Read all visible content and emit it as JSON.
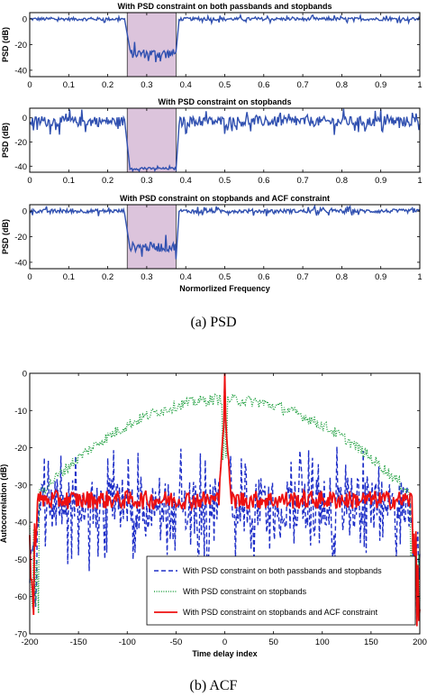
{
  "captions": {
    "top": "(a) PSD",
    "bottom": "(b) ACF"
  },
  "chart_data": [
    {
      "type": "line",
      "title": "With PSD constraint on both passbands and stopbands",
      "xlabel": "",
      "ylabel": "PSD (dB)",
      "xlim": [
        0,
        1
      ],
      "ylim": [
        -45,
        5
      ],
      "xticks": [
        "0",
        "0.1",
        "0.2",
        "0.3",
        "0.4",
        "0.5",
        "0.6",
        "0.7",
        "0.8",
        "0.9",
        "1"
      ],
      "yticks": [
        "0",
        "-20",
        "-40"
      ],
      "shaded_band": {
        "x": [
          0.25,
          0.375
        ],
        "color": "#dcc4dc"
      },
      "series": [
        {
          "color": "#3050b0",
          "regions": [
            {
              "x": [
                0,
                0.243
              ],
              "level": 0,
              "noise": 2
            },
            {
              "x": [
                0.257,
                0.375
              ],
              "level": -27,
              "noise": 6
            },
            {
              "x": [
                0.383,
                1
              ],
              "level": 0,
              "noise": 2
            }
          ]
        }
      ]
    },
    {
      "type": "line",
      "title": "With PSD constraint on stopbands",
      "xlabel": "",
      "ylabel": "PSD (dB)",
      "xlim": [
        0,
        1
      ],
      "ylim": [
        -45,
        8
      ],
      "xticks": [
        "0",
        "0.1",
        "0.2",
        "0.3",
        "0.4",
        "0.5",
        "0.6",
        "0.7",
        "0.8",
        "0.9",
        "1"
      ],
      "yticks": [
        "0",
        "-20",
        "-40"
      ],
      "shaded_band": {
        "x": [
          0.25,
          0.375
        ],
        "color": "#dcc4dc"
      },
      "series": [
        {
          "color": "#3050b0",
          "regions": [
            {
              "x": [
                0,
                0.243
              ],
              "level": -3,
              "noise": 7
            },
            {
              "x": [
                0.257,
                0.375
              ],
              "level": -42,
              "noise": 1.5
            },
            {
              "x": [
                0.383,
                1
              ],
              "level": -3,
              "noise": 7
            }
          ]
        }
      ]
    },
    {
      "type": "line",
      "title": "With PSD constraint on stopbands and ACF constraint",
      "xlabel": "Normorlized Frequency",
      "ylabel": "PSD (dB)",
      "xlim": [
        0,
        1
      ],
      "ylim": [
        -45,
        5
      ],
      "xticks": [
        "0",
        "0.1",
        "0.2",
        "0.3",
        "0.4",
        "0.5",
        "0.6",
        "0.7",
        "0.8",
        "0.9",
        "1"
      ],
      "yticks": [
        "0",
        "-20",
        "-40"
      ],
      "shaded_band": {
        "x": [
          0.25,
          0.375
        ],
        "color": "#dcc4dc"
      },
      "series": [
        {
          "color": "#3050b0",
          "regions": [
            {
              "x": [
                0,
                0.243
              ],
              "level": 0,
              "noise": 2.5
            },
            {
              "x": [
                0.257,
                0.375
              ],
              "level": -28,
              "noise": 6
            },
            {
              "x": [
                0.383,
                1
              ],
              "level": 0,
              "noise": 2.5
            }
          ]
        }
      ]
    },
    {
      "type": "line",
      "title": "",
      "xlabel": "Time delay index",
      "ylabel": "Autocorrelation (dB)",
      "xlim": [
        -200,
        200
      ],
      "ylim": [
        -70,
        0
      ],
      "xticks": [
        "-200",
        "-150",
        "-100",
        "-50",
        "0",
        "50",
        "100",
        "150",
        "200"
      ],
      "yticks": [
        "0",
        "-10",
        "-20",
        "-30",
        "-40",
        "-50",
        "-60",
        "-70"
      ],
      "legend": "bottom-right",
      "series": [
        {
          "name": "With PSD constraint on both passbands and stopbands",
          "color": "#2030c8",
          "style": "dashed",
          "floor": -35,
          "noise": 14,
          "peak": 0
        },
        {
          "name": "With PSD constraint on stopbands",
          "color": "#20a040",
          "style": "dotted",
          "envelope_peak": -7,
          "envelope_edge": -35,
          "peak": 0
        },
        {
          "name": "With PSD constraint on stopbands and ACF constraint",
          "color": "#ee1010",
          "style": "solid",
          "floor": -34,
          "noise": 5,
          "peak": 0
        }
      ]
    }
  ]
}
